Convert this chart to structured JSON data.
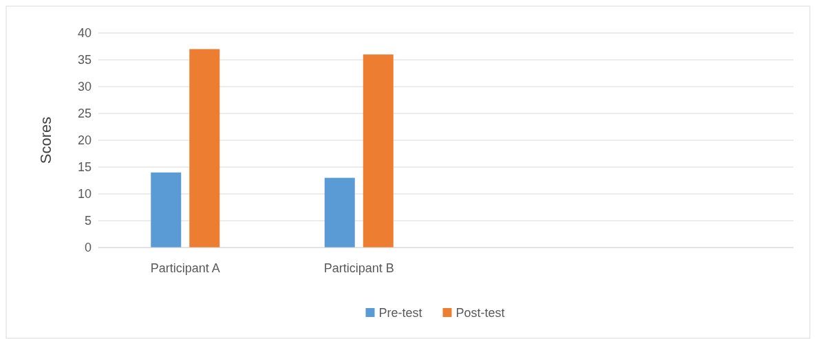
{
  "chart_data": {
    "type": "bar",
    "ylabel": "Scores",
    "categories": [
      "Participant A",
      "Participant B",
      null,
      null
    ],
    "series": [
      {
        "name": "Pre-test",
        "color": "#5b9bd5",
        "values": [
          14,
          13,
          null,
          null
        ]
      },
      {
        "name": "Post-test",
        "color": "#ed7d31",
        "values": [
          37,
          36,
          null,
          null
        ]
      }
    ],
    "ylim": [
      0,
      40
    ],
    "yticks": [
      0,
      5,
      10,
      15,
      20,
      25,
      30,
      35,
      40
    ],
    "grid": "y",
    "legend": "bottom"
  }
}
